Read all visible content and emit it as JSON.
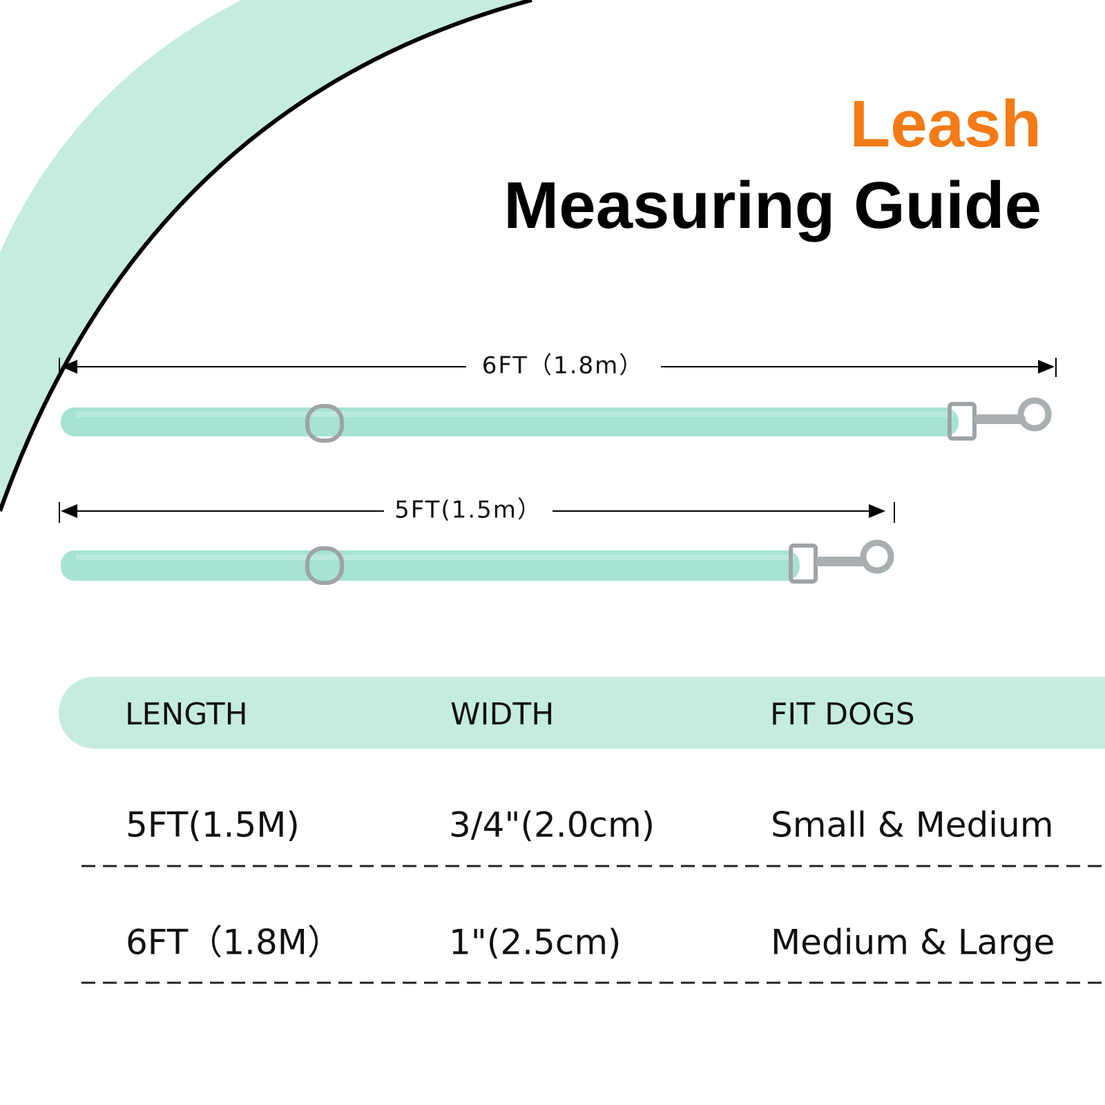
{
  "title": {
    "line1": "Leash",
    "line2": "Measuring Guide"
  },
  "dimensions": [
    "6FT（1.8m）",
    "5FT(1.5m）"
  ],
  "table": {
    "headers": [
      "LENGTH",
      "WIDTH",
      "FIT DOGS"
    ],
    "rows": [
      [
        "5FT(1.5M)",
        "3/4\"(2.0cm)",
        "Small & Medium"
      ],
      [
        "6FT（1.8M）",
        "1\"(2.5cm)",
        "Medium & Large"
      ]
    ]
  }
}
